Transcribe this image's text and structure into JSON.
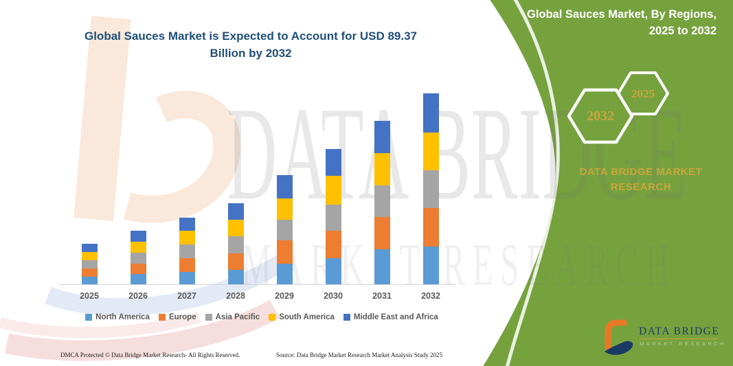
{
  "header": {
    "title": "Global Sauces Market is Expected to Account for USD 89.37 Billion by 2032",
    "title_color": "#1F4E79"
  },
  "green_panel": {
    "bg_color": "#76A23E",
    "title_line1": "Global Sauces Market, By Regions,",
    "title_line2": "2025 to 2032",
    "hexagons": [
      {
        "label": "2032"
      },
      {
        "label": "2025"
      }
    ],
    "brand_text": "DATA BRIDGE MARKET RESEARCH",
    "gold_color": "#C8A63E"
  },
  "watermark": {
    "line1": "DATA BRIDGE",
    "line2": "MARKET RESEARCH"
  },
  "chart_data": {
    "type": "bar",
    "stacked": true,
    "title": "Global Sauces Market, By Regions, 2025 to 2032",
    "xlabel": "",
    "ylabel": "",
    "unit": "USD Billion",
    "grid": false,
    "y_axis_visible": false,
    "legend_position": "bottom",
    "categories": [
      "2025",
      "2026",
      "2027",
      "2028",
      "2029",
      "2030",
      "2031",
      "2032"
    ],
    "series": [
      {
        "name": "North America",
        "color": "#5B9BD5",
        "values": [
          3.9,
          5.0,
          6.1,
          7.1,
          10.0,
          12.5,
          16.7,
          18.0
        ]
      },
      {
        "name": "Europe",
        "color": "#ED7D31",
        "values": [
          3.8,
          5.1,
          6.3,
          7.7,
          10.7,
          12.8,
          14.9,
          17.9
        ]
      },
      {
        "name": "Asia Pacific",
        "color": "#A5A5A5",
        "values": [
          3.9,
          5.1,
          6.5,
          7.9,
          9.9,
          12.3,
          14.8,
          17.7
        ]
      },
      {
        "name": "South America",
        "color": "#FFC000",
        "values": [
          3.7,
          5.1,
          6.3,
          7.6,
          9.9,
          13.4,
          15.0,
          17.6
        ]
      },
      {
        "name": "Middle East and Africa",
        "color": "#4472C4",
        "values": [
          3.9,
          5.1,
          6.3,
          7.7,
          10.7,
          12.4,
          15.3,
          18.17
        ]
      }
    ],
    "estimated_totals": [
      19.2,
      25.4,
      31.5,
      38.0,
      51.2,
      63.4,
      76.7,
      89.37
    ]
  },
  "logo": {
    "title": "DATA BRIDGE",
    "subtitle": "MARKET RESEARCH"
  },
  "footer": {
    "dmca": "DMCA Protected © Data Bridge Market Research-  All Rights Reserved.",
    "source": "Source: Data Bridge Market Research  Market Analysis Study 2025"
  }
}
